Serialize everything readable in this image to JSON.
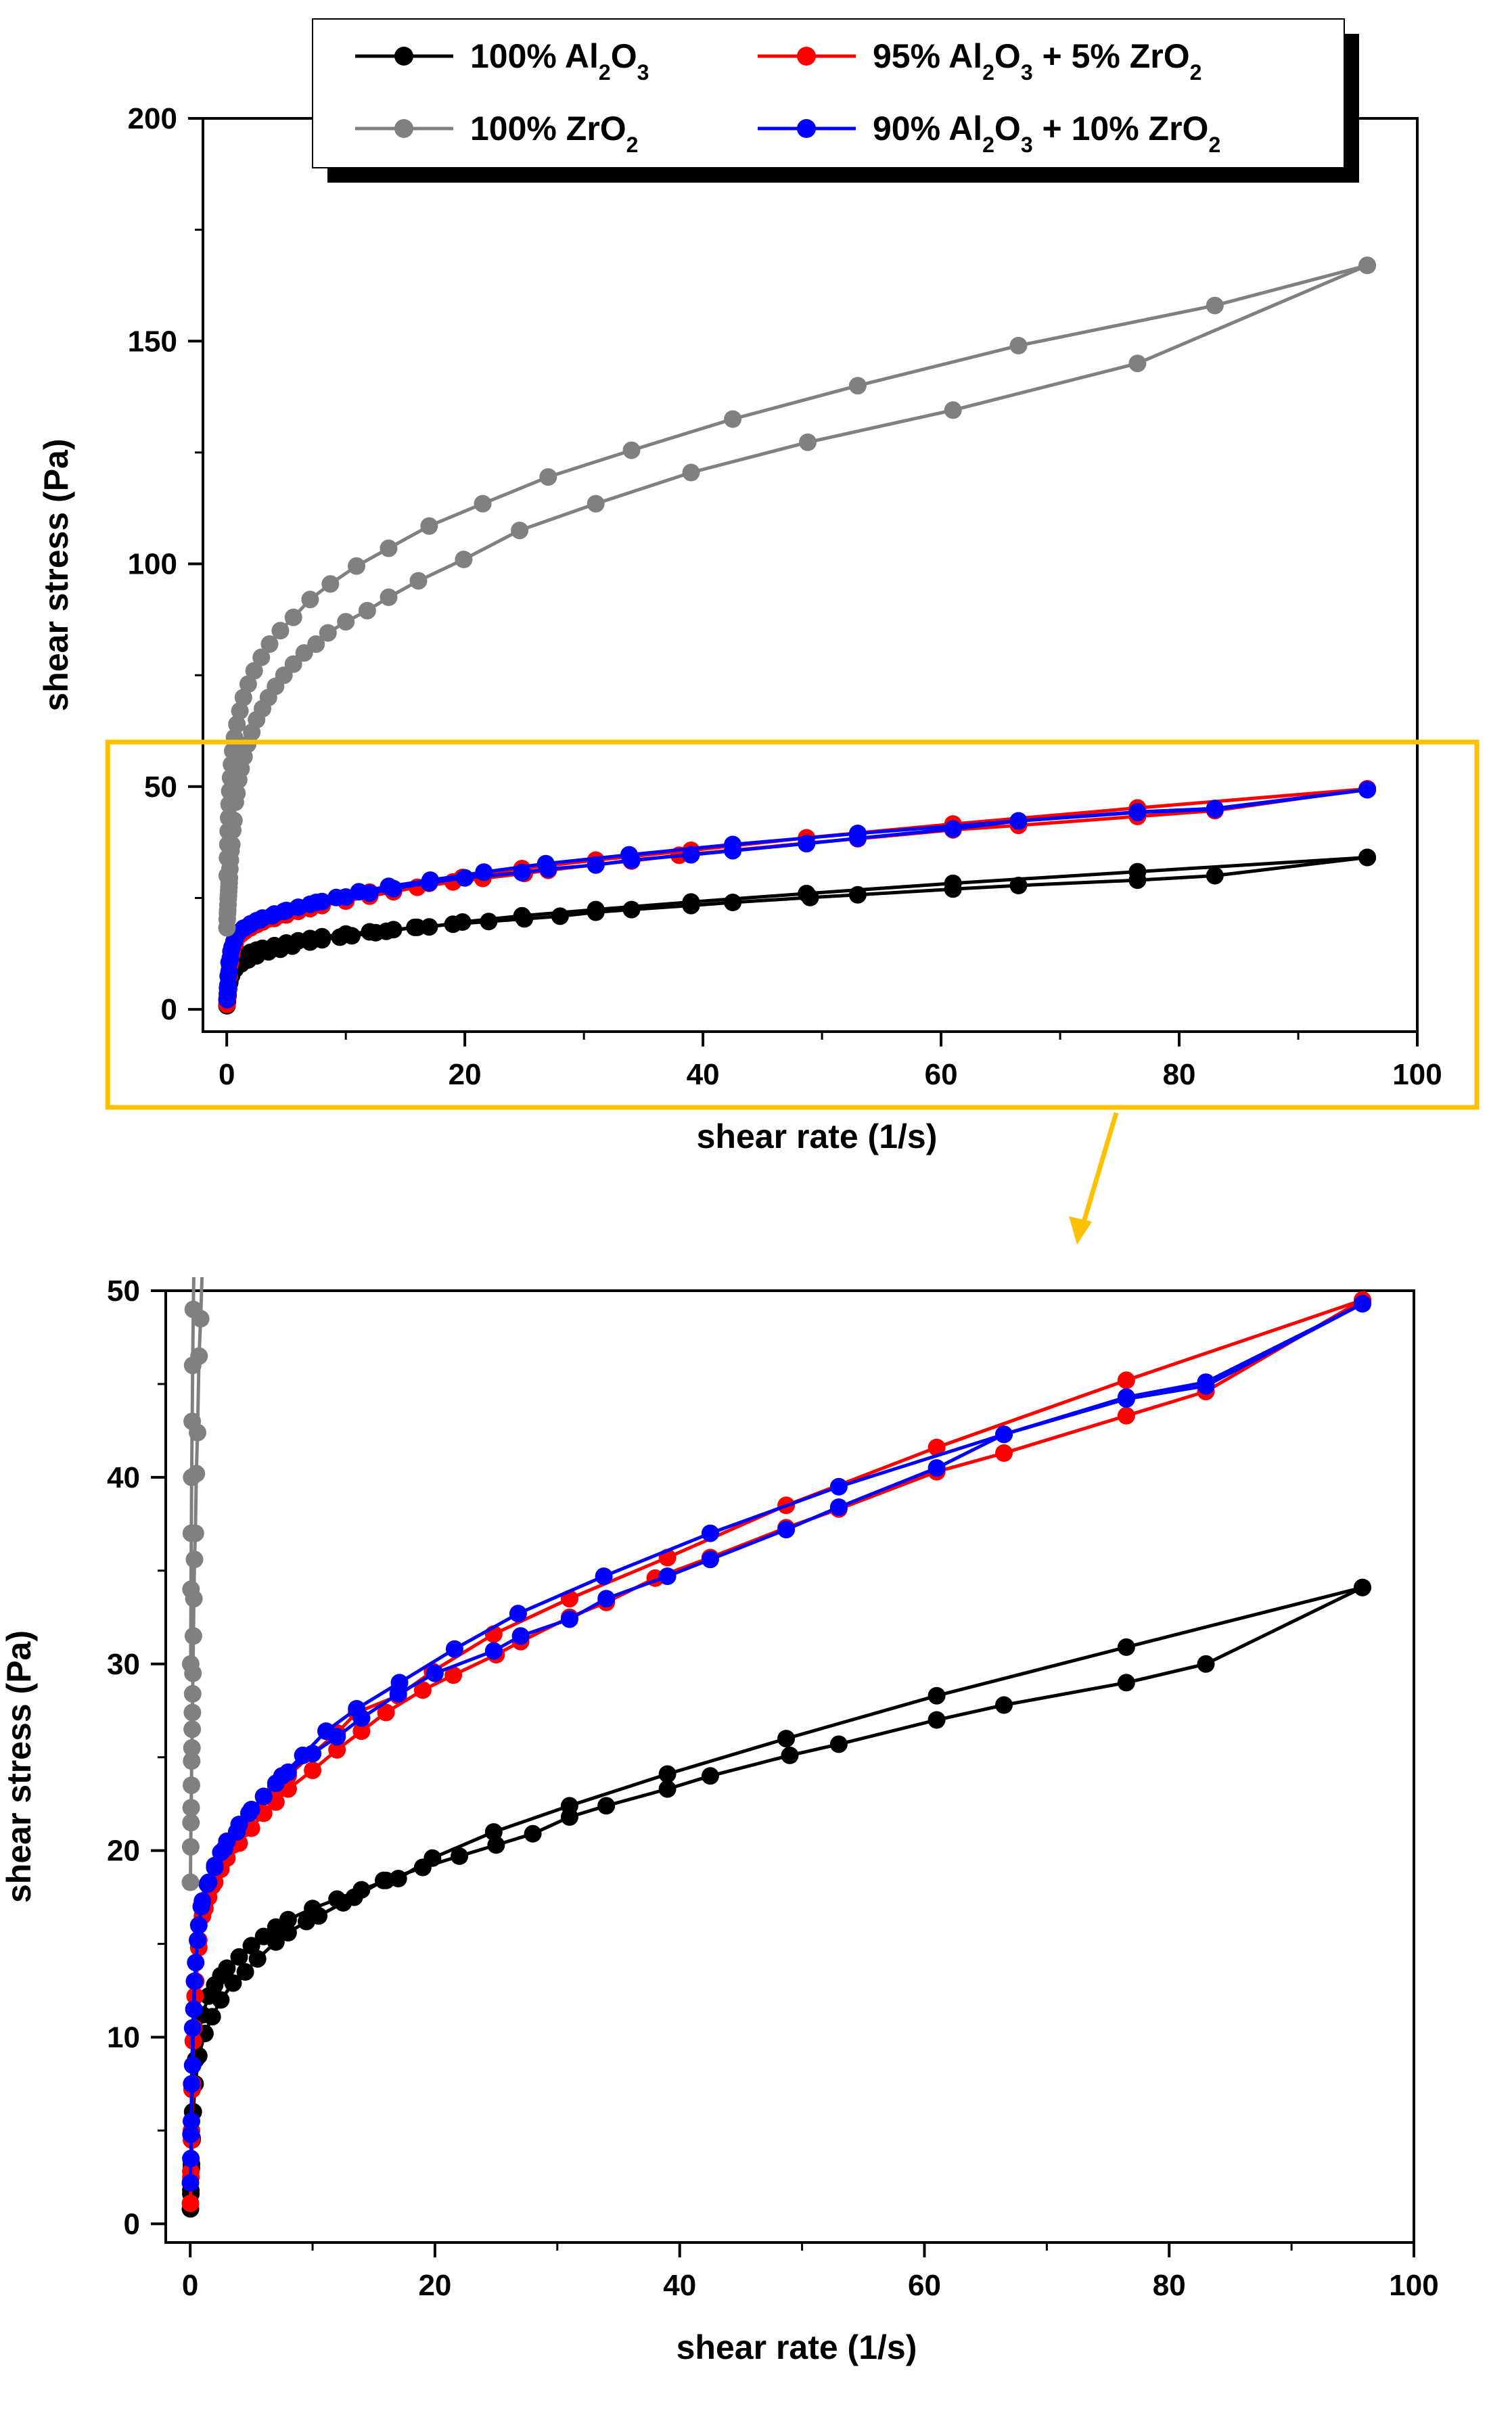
{
  "chart_data": [
    {
      "id": "overview",
      "type": "line",
      "xlabel": "shear rate   (1/s)",
      "ylabel": "shear stress   (Pa)",
      "xlim": [
        -2,
        100
      ],
      "ylim": [
        -5,
        200
      ],
      "xticks": [
        0,
        20,
        40,
        60,
        80,
        100
      ],
      "yticks": [
        0,
        50,
        100,
        150,
        200
      ],
      "legend": {
        "placement": "top",
        "entries": [
          {
            "parts": [
              {
                "t": "100% Al"
              },
              {
                "t": "2",
                "sub": true
              },
              {
                "t": "O"
              },
              {
                "t": "3",
                "sub": true
              }
            ],
            "color": "#000000"
          },
          {
            "parts": [
              {
                "t": "95% Al"
              },
              {
                "t": "2",
                "sub": true
              },
              {
                "t": "O"
              },
              {
                "t": "3",
                "sub": true
              },
              {
                "t": " + 5% ZrO"
              },
              {
                "t": "2",
                "sub": true
              }
            ],
            "color": "#ff0000"
          },
          {
            "parts": [
              {
                "t": "100% ZrO"
              },
              {
                "t": "2",
                "sub": true
              }
            ],
            "color": "#808080"
          },
          {
            "parts": [
              {
                "t": "90% Al"
              },
              {
                "t": "2",
                "sub": true
              },
              {
                "t": "O"
              },
              {
                "t": "3",
                "sub": true
              },
              {
                "t": " + 10% ZrO"
              },
              {
                "t": "2",
                "sub": true
              }
            ],
            "color": "#0000ff"
          }
        ]
      },
      "zoom_box": {
        "x": [
          -10,
          105
        ],
        "y": [
          -22,
          60
        ],
        "color": "#ffc000"
      }
    },
    {
      "id": "zoom",
      "type": "line",
      "xlabel": "shear rate   (1/s)",
      "ylabel": "shear stress   (Pa)",
      "xlim": [
        -2,
        100
      ],
      "ylim": [
        -1,
        50
      ],
      "xticks": [
        0,
        20,
        40,
        60,
        80,
        100
      ],
      "yticks": [
        0,
        10,
        20,
        30,
        40,
        50
      ]
    }
  ],
  "series": [
    {
      "name": "100% Al2O3",
      "color": "#000000",
      "up": [
        [
          0.02,
          0.8
        ],
        [
          0.05,
          1.8
        ],
        [
          0.1,
          3.2
        ],
        [
          0.15,
          4.6
        ],
        [
          0.2,
          6
        ],
        [
          0.3,
          7.5
        ],
        [
          0.45,
          8.8
        ],
        [
          0.7,
          10.2
        ],
        [
          1,
          11.2
        ],
        [
          1.5,
          12.2
        ],
        [
          2,
          12.8
        ],
        [
          2.5,
          13.3
        ],
        [
          3,
          13.7
        ],
        [
          4,
          14.3
        ],
        [
          5,
          14.9
        ],
        [
          6,
          15.4
        ],
        [
          7,
          15.9
        ],
        [
          8,
          16.3
        ],
        [
          10,
          16.9
        ],
        [
          12,
          17.4
        ],
        [
          14,
          17.9
        ],
        [
          16,
          18.4
        ],
        [
          19,
          19.1
        ],
        [
          22,
          19.7
        ],
        [
          25,
          20.3
        ],
        [
          28,
          20.9
        ],
        [
          31,
          21.8
        ],
        [
          34,
          22.4
        ],
        [
          39,
          23.3
        ],
        [
          42.5,
          24
        ],
        [
          49,
          25.1
        ],
        [
          53,
          25.7
        ],
        [
          61,
          27
        ],
        [
          66.5,
          27.8
        ],
        [
          76.5,
          29
        ],
        [
          83,
          30
        ],
        [
          95.8,
          34.1
        ]
      ],
      "down": [
        [
          95.8,
          34.1
        ],
        [
          76.5,
          30.9
        ],
        [
          61,
          28.3
        ],
        [
          48.7,
          26
        ],
        [
          39,
          24.1
        ],
        [
          31,
          22.4
        ],
        [
          24.8,
          21
        ],
        [
          19.8,
          19.6
        ],
        [
          17,
          18.5
        ],
        [
          15.8,
          18.4
        ],
        [
          13.4,
          17.5
        ],
        [
          12.5,
          17.2
        ],
        [
          10.5,
          16.5
        ],
        [
          9.5,
          16.2
        ],
        [
          8,
          15.6
        ],
        [
          7,
          15.1
        ],
        [
          5.5,
          14.2
        ],
        [
          4.5,
          13.5
        ],
        [
          3.5,
          12.9
        ],
        [
          2.5,
          12
        ],
        [
          1.8,
          11.1
        ],
        [
          1.2,
          10.2
        ],
        [
          0.7,
          9
        ],
        [
          0.4,
          7.5
        ],
        [
          0.25,
          6
        ],
        [
          0.15,
          4.5
        ],
        [
          0.1,
          3
        ],
        [
          0.05,
          1.6
        ]
      ]
    },
    {
      "name": "95% Al2O3 + 5% ZrO2",
      "color": "#ff0000",
      "up": [
        [
          0.02,
          1.1
        ],
        [
          0.05,
          2.5
        ],
        [
          0.1,
          4.5
        ],
        [
          0.2,
          7.5
        ],
        [
          0.3,
          10.5
        ],
        [
          0.45,
          13
        ],
        [
          0.7,
          15.2
        ],
        [
          1,
          16.5
        ],
        [
          1.5,
          17.5
        ],
        [
          2,
          18.3
        ],
        [
          2.5,
          19
        ],
        [
          3,
          19.6
        ],
        [
          4,
          20.4
        ],
        [
          5,
          21.2
        ],
        [
          6,
          22
        ],
        [
          7,
          22.6
        ],
        [
          8,
          23.3
        ],
        [
          10,
          24.3
        ],
        [
          12,
          25.4
        ],
        [
          14,
          26.4
        ],
        [
          16,
          27.4
        ],
        [
          19,
          28.6
        ],
        [
          21.5,
          29.4
        ],
        [
          25,
          30.5
        ],
        [
          27,
          31.2
        ],
        [
          31,
          32.5
        ],
        [
          34,
          33.3
        ],
        [
          38,
          34.6
        ],
        [
          42.5,
          35.7
        ],
        [
          48.7,
          37.3
        ],
        [
          53,
          38.3
        ],
        [
          61,
          40.3
        ],
        [
          66.5,
          41.3
        ],
        [
          76.5,
          43.3
        ],
        [
          83,
          44.6
        ],
        [
          95.8,
          49.5
        ]
      ],
      "down": [
        [
          95.8,
          49.5
        ],
        [
          76.5,
          45.2
        ],
        [
          61,
          41.6
        ],
        [
          48.7,
          38.5
        ],
        [
          39,
          35.7
        ],
        [
          31,
          33.5
        ],
        [
          24.8,
          31.6
        ],
        [
          19.8,
          29.6
        ],
        [
          17,
          28.3
        ],
        [
          13.6,
          27.4
        ],
        [
          12,
          26.3
        ],
        [
          10,
          25.2
        ],
        [
          8,
          24
        ],
        [
          7,
          23.4
        ],
        [
          5.5,
          22.1
        ],
        [
          4.5,
          21.2
        ],
        [
          3.5,
          20.3
        ],
        [
          2.5,
          19.2
        ],
        [
          1.8,
          18.1
        ],
        [
          1.2,
          16.9
        ],
        [
          0.7,
          14.8
        ],
        [
          0.4,
          12.2
        ],
        [
          0.25,
          9.8
        ],
        [
          0.15,
          7.2
        ],
        [
          0.1,
          5
        ],
        [
          0.05,
          2.8
        ]
      ]
    },
    {
      "name": "90% Al2O3 + 10% ZrO2",
      "color": "#0000ff",
      "up": [
        [
          0.02,
          2.2
        ],
        [
          0.05,
          3.5
        ],
        [
          0.1,
          5.5
        ],
        [
          0.2,
          8.5
        ],
        [
          0.3,
          11.5
        ],
        [
          0.45,
          14
        ],
        [
          0.7,
          16
        ],
        [
          1,
          17.3
        ],
        [
          1.5,
          18.3
        ],
        [
          2,
          19.2
        ],
        [
          2.5,
          19.9
        ],
        [
          3,
          20.5
        ],
        [
          4,
          21.4
        ],
        [
          5,
          22.2
        ],
        [
          6,
          22.9
        ],
        [
          7,
          23.6
        ],
        [
          8,
          24.2
        ],
        [
          10,
          25.2
        ],
        [
          12,
          26.1
        ],
        [
          14,
          27.1
        ],
        [
          17,
          28.4
        ],
        [
          20,
          29.5
        ],
        [
          24.8,
          30.7
        ],
        [
          27,
          31.5
        ],
        [
          31,
          32.4
        ],
        [
          34,
          33.5
        ],
        [
          39,
          34.7
        ],
        [
          42.5,
          35.6
        ],
        [
          48.7,
          37.2
        ],
        [
          53,
          38.4
        ],
        [
          61,
          40.5
        ],
        [
          66.5,
          42.3
        ],
        [
          76.5,
          44.2
        ],
        [
          83,
          44.9
        ],
        [
          95.8,
          49.3
        ]
      ],
      "down": [
        [
          95.8,
          49.3
        ],
        [
          83,
          45.1
        ],
        [
          76.5,
          44.3
        ],
        [
          66.5,
          42.3
        ],
        [
          53,
          39.5
        ],
        [
          42.5,
          37
        ],
        [
          33.8,
          34.7
        ],
        [
          26.8,
          32.7
        ],
        [
          21.6,
          30.8
        ],
        [
          17.1,
          29
        ],
        [
          13.6,
          27.6
        ],
        [
          11.1,
          26.4
        ],
        [
          9.2,
          25.1
        ],
        [
          7.5,
          24
        ],
        [
          6,
          22.9
        ],
        [
          4.8,
          22
        ],
        [
          3.8,
          21
        ],
        [
          2.8,
          20.1
        ],
        [
          2,
          19.1
        ],
        [
          1.4,
          18.2
        ],
        [
          0.9,
          17
        ],
        [
          0.6,
          15.2
        ],
        [
          0.35,
          13
        ],
        [
          0.2,
          10.5
        ],
        [
          0.12,
          7.5
        ],
        [
          0.06,
          4.8
        ]
      ]
    },
    {
      "name": "100% ZrO2",
      "color": "#808080",
      "up": [
        [
          0.02,
          18.3
        ],
        [
          0.04,
          20.2
        ],
        [
          0.06,
          21.5
        ],
        [
          0.08,
          22.3
        ],
        [
          0.1,
          23.5
        ],
        [
          0.12,
          24.8
        ],
        [
          0.14,
          25.5
        ],
        [
          0.16,
          26.5
        ],
        [
          0.18,
          27.4
        ],
        [
          0.2,
          28.4
        ],
        [
          0.22,
          29.5
        ],
        [
          0.26,
          31.5
        ],
        [
          0.3,
          33.5
        ],
        [
          0.35,
          35.6
        ],
        [
          0.42,
          37
        ],
        [
          0.5,
          40.2
        ],
        [
          0.6,
          42.4
        ],
        [
          0.72,
          46.5
        ],
        [
          0.85,
          48.5
        ],
        [
          1,
          51.5
        ],
        [
          1.2,
          54
        ],
        [
          1.45,
          56.7
        ],
        [
          1.75,
          59.5
        ],
        [
          2.1,
          62.2
        ],
        [
          2.5,
          65
        ],
        [
          3,
          67.5
        ],
        [
          3.5,
          70
        ],
        [
          4.1,
          72.5
        ],
        [
          4.8,
          75
        ],
        [
          5.6,
          77.5
        ],
        [
          6.5,
          80
        ],
        [
          7.5,
          82
        ],
        [
          8.5,
          84.5
        ],
        [
          10,
          87
        ],
        [
          11.8,
          89.5
        ],
        [
          13.6,
          92.5
        ],
        [
          16.1,
          96.2
        ],
        [
          19.9,
          101
        ],
        [
          24.6,
          107.5
        ],
        [
          31,
          113.5
        ],
        [
          39,
          120.5
        ],
        [
          48.8,
          127.3
        ],
        [
          61,
          134.5
        ],
        [
          76.5,
          145
        ],
        [
          95.8,
          167
        ]
      ],
      "down": [
        [
          95.8,
          167
        ],
        [
          83,
          158
        ],
        [
          66.5,
          149
        ],
        [
          53,
          140
        ],
        [
          42.5,
          132.5
        ],
        [
          34,
          125.5
        ],
        [
          27,
          119.5
        ],
        [
          21.5,
          113.5
        ],
        [
          17,
          108.5
        ],
        [
          13.6,
          103.5
        ],
        [
          10.9,
          99.5
        ],
        [
          8.7,
          95.5
        ],
        [
          7,
          92
        ],
        [
          5.6,
          88
        ],
        [
          4.5,
          85
        ],
        [
          3.6,
          82
        ],
        [
          2.9,
          79
        ],
        [
          2.3,
          76
        ],
        [
          1.8,
          73
        ],
        [
          1.4,
          70
        ],
        [
          1.1,
          67
        ],
        [
          0.85,
          64
        ],
        [
          0.65,
          61
        ],
        [
          0.5,
          58
        ],
        [
          0.4,
          55
        ],
        [
          0.32,
          52
        ],
        [
          0.25,
          49
        ],
        [
          0.2,
          46
        ],
        [
          0.16,
          43
        ],
        [
          0.12,
          40
        ],
        [
          0.09,
          37
        ],
        [
          0.06,
          34
        ],
        [
          0.04,
          30
        ]
      ]
    }
  ]
}
